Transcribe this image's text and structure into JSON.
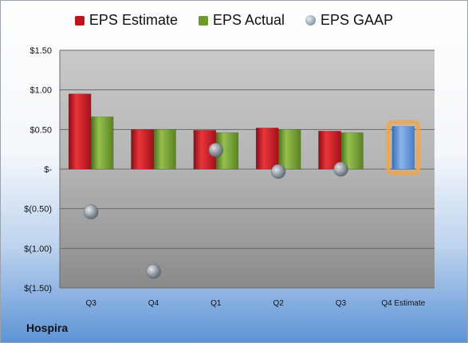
{
  "legend": {
    "estimate": "EPS Estimate",
    "actual": "EPS Actual",
    "gaap": "EPS GAAP"
  },
  "company": "Hospira",
  "colors": {
    "estimate": "#c0141c",
    "actual": "#6f9a2c",
    "gaap": "#9aa4ae",
    "forecast": "#5b8ed6",
    "forecast_glow": "#f2a44a"
  },
  "chart_data": {
    "type": "bar",
    "categories": [
      "Q3",
      "Q4",
      "Q1",
      "Q2",
      "Q3",
      "Q4 Estimate"
    ],
    "series": [
      {
        "name": "EPS Estimate",
        "values": [
          0.95,
          0.5,
          0.49,
          0.52,
          0.48,
          null
        ]
      },
      {
        "name": "EPS Actual",
        "values": [
          0.66,
          0.5,
          0.46,
          0.5,
          0.46,
          null
        ]
      },
      {
        "name": "EPS GAAP",
        "type": "scatter",
        "values": [
          -0.54,
          -1.29,
          0.24,
          -0.03,
          0.0,
          null
        ]
      },
      {
        "name": "EPS Estimate (upcoming)",
        "values": [
          null,
          null,
          null,
          null,
          null,
          0.54
        ]
      }
    ],
    "ylim": [
      -1.5,
      1.5
    ],
    "yticks": [
      1.5,
      1.0,
      0.5,
      0,
      -0.5,
      -1.0,
      -1.5
    ],
    "ytick_labels": [
      "$1.50",
      "$1.00",
      "$0.50",
      "$-",
      "$(0.50)",
      "$(1.00)",
      "$(1.50)"
    ],
    "grid": true,
    "legend_position": "top"
  }
}
